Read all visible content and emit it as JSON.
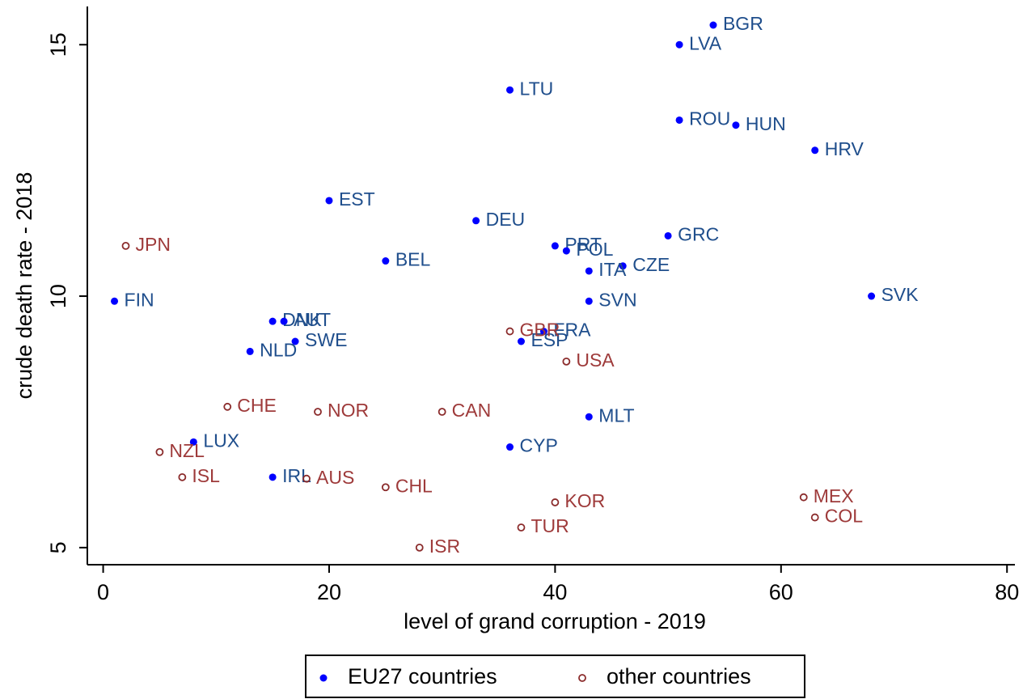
{
  "chart_data": {
    "type": "scatter",
    "x_label": "level of grand corruption - 2019",
    "y_label": "crude death rate - 2018",
    "xlim": [
      -1.4,
      80.7
    ],
    "ylim": [
      4.66,
      15.76
    ],
    "xticks": [
      0,
      20,
      40,
      60,
      80
    ],
    "yticks": [
      5,
      10,
      15
    ],
    "legend": "bottom",
    "series": [
      {
        "name": "EU27 countries",
        "color": "#0000ff",
        "label_color": "#1f4e8c",
        "marker": "dot",
        "labels": [
          "BGR",
          "LVA",
          "LTU",
          "ROU",
          "HUN",
          "HRV",
          "EST",
          "DEU",
          "GRC",
          "PRT",
          "POL",
          "BEL",
          "CZE",
          "ITA",
          "SVK",
          "FIN",
          "SVN",
          "DNK",
          "AUT",
          "SWE",
          "ESP",
          "FRA",
          "NLD",
          "MLT",
          "CYP",
          "LUX",
          "IRL"
        ],
        "x": [
          54,
          51,
          36,
          51,
          56,
          63,
          20,
          33,
          50,
          40,
          41,
          25,
          46,
          43,
          68,
          1,
          43,
          15,
          16,
          17,
          37,
          39,
          13,
          43,
          36,
          8,
          15
        ],
        "values": [
          15.39,
          15.0,
          14.1,
          13.5,
          13.4,
          12.9,
          11.9,
          11.5,
          11.2,
          11.0,
          10.9,
          10.7,
          10.6,
          10.5,
          10.0,
          9.9,
          9.9,
          9.5,
          9.5,
          9.1,
          9.1,
          9.3,
          8.9,
          7.6,
          7.0,
          7.1,
          6.4
        ]
      },
      {
        "name": "other countries",
        "color": "#8b2c2c",
        "label_color": "#9e3a3a",
        "marker": "circle",
        "labels": [
          "JPN",
          "GBR",
          "USA",
          "CHE",
          "NOR",
          "CAN",
          "NZL",
          "ISL",
          "AUS",
          "CHL",
          "MEX",
          "KOR",
          "COL",
          "TUR",
          "ISR"
        ],
        "x": [
          2,
          36,
          41,
          11,
          19,
          30,
          5,
          7,
          18,
          25,
          62,
          40,
          63,
          37,
          28
        ],
        "values": [
          11.0,
          9.3,
          8.7,
          7.8,
          7.7,
          7.7,
          6.9,
          6.4,
          6.37,
          6.2,
          6.0,
          5.9,
          5.6,
          5.4,
          5.0
        ]
      }
    ]
  }
}
